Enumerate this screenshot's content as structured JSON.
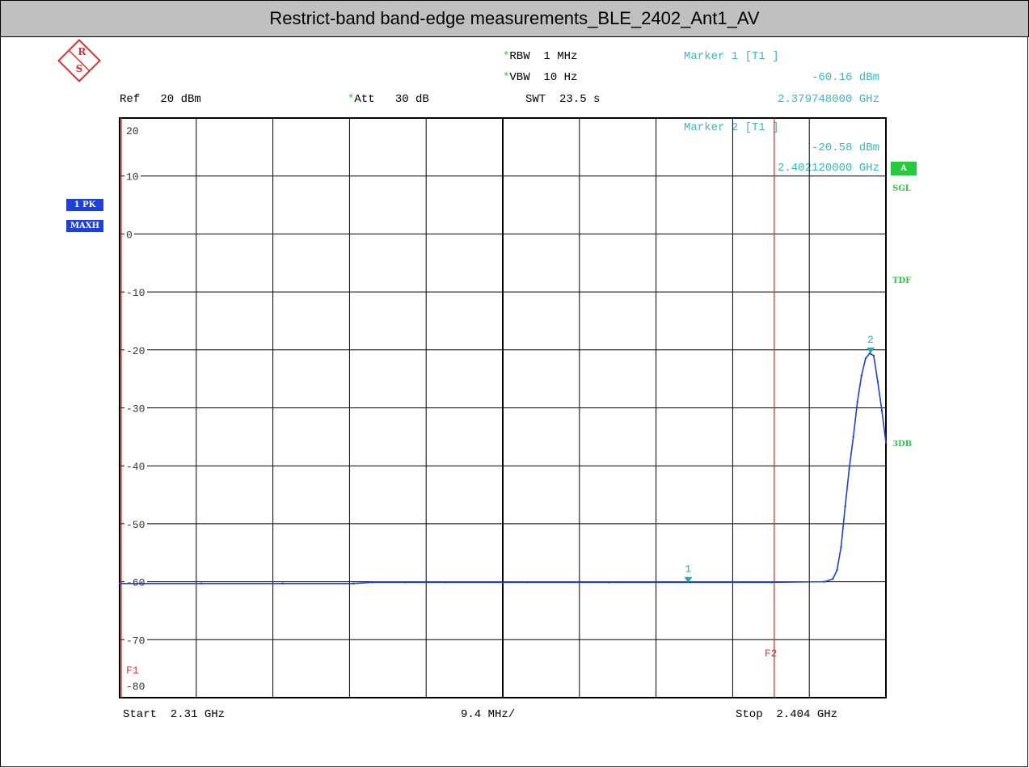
{
  "title": "Restrict-band band-edge measurements_BLE_2402_Ant1_AV",
  "header": {
    "rbw": "RBW  1 MHz",
    "vbw": "VBW  10 Hz",
    "swt": "SWT  23.5 s",
    "ref": "Ref   20 dBm",
    "att": "Att   30 dB",
    "star": "*"
  },
  "marker1": {
    "label": "Marker 1 [T1 ]",
    "level": "-60.16 dBm",
    "freq": "2.379748000 GHz"
  },
  "marker2": {
    "label": "Marker 2 [T1 ]",
    "level": "-20.58 dBm",
    "freq": "2.402120000 GHz"
  },
  "sidebar": {
    "trace_mode": "1 PK",
    "trace_detector": "MAXH",
    "a_badge": "A",
    "sgl": "SGL",
    "tdf": "TDF",
    "three_db": "3DB"
  },
  "footer": {
    "start": "Start  2.31 GHz",
    "div": "9.4 MHz/",
    "stop": "Stop  2.404 GHz"
  },
  "colors": {
    "trace": "#1f3fd6",
    "marker": "#2aa7a7",
    "line": "#e0302a",
    "grid": "#000000",
    "badge": "#1f3fd6",
    "status": "#27c93f"
  },
  "chart_data": {
    "type": "line",
    "xlabel": "",
    "ylabel": "",
    "xlim": [
      2.31,
      2.404
    ],
    "ylim": [
      -80,
      20
    ],
    "x_unit": "GHz",
    "y_unit": "dBm",
    "y_ticks": [
      20,
      10,
      0,
      -10,
      -20,
      -30,
      -40,
      -50,
      -60,
      -70,
      -80
    ],
    "grid": true,
    "series": [
      {
        "x": [
          2.31,
          2.3125,
          2.32,
          2.33,
          2.3387,
          2.341,
          2.345,
          2.35,
          2.36,
          2.37,
          2.38,
          2.39,
          2.3965,
          2.3975,
          2.398,
          2.3985,
          2.399,
          2.3995,
          2.4,
          2.4005,
          2.401,
          2.4015,
          2.402,
          2.4025,
          2.403,
          2.4035,
          2.404
        ],
        "y": [
          -60.3,
          -60.3,
          -60.3,
          -60.3,
          -60.3,
          -60.1,
          -60.1,
          -60.1,
          -60.1,
          -60.1,
          -60.1,
          -60.1,
          -60.0,
          -59.5,
          -58.0,
          -54.0,
          -47.0,
          -40.5,
          -35.0,
          -29.0,
          -24.5,
          -21.5,
          -20.58,
          -21.0,
          -25.5,
          -30.5,
          -36.0
        ]
      }
    ],
    "markers": [
      {
        "name": "1",
        "x": 2.379748,
        "y": -60.16
      },
      {
        "name": "2",
        "x": 2.40212,
        "y": -20.58
      }
    ],
    "lines": [
      {
        "name": "F1",
        "x": 2.3102
      },
      {
        "name": "F2",
        "x": 2.3903
      }
    ]
  }
}
